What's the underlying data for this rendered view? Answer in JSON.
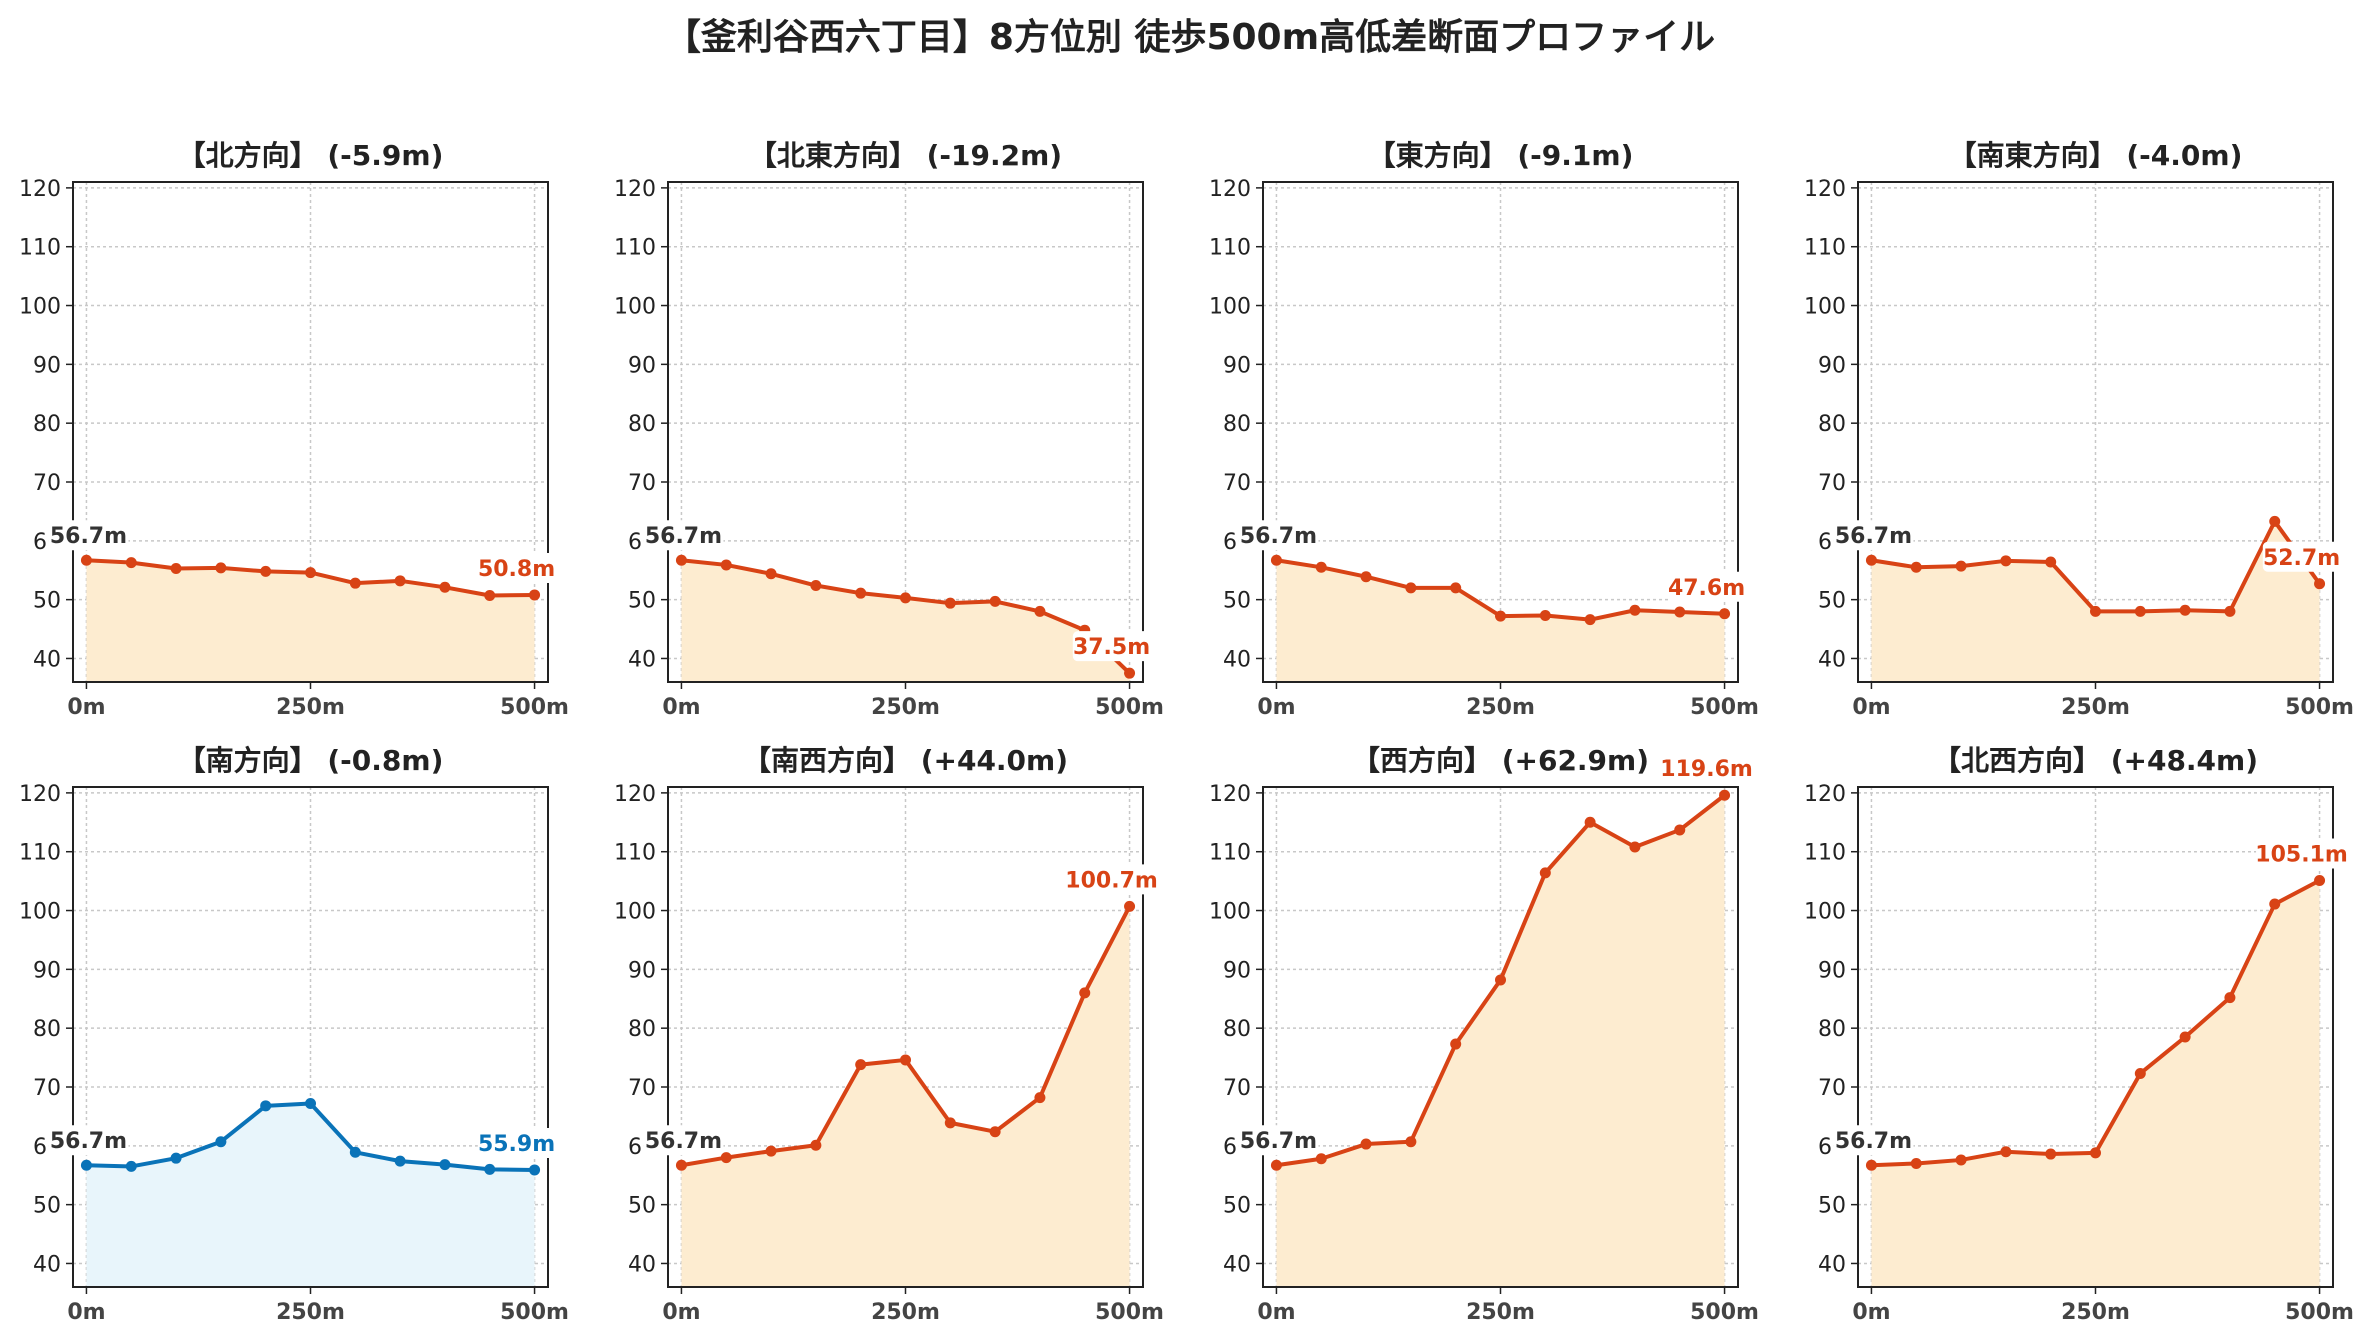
{
  "title": "【釜利谷西六丁目】8方位別 徒歩500m高低差断面プロファイル",
  "colors": {
    "down_line": "#d84315",
    "down_fill": "#fdecd0",
    "flat_line": "#0a73b8",
    "flat_fill": "#e8f5fb",
    "grid": "#c8c8c8",
    "start_label": "#333333"
  },
  "chart_data": [
    {
      "type": "line",
      "title": "【北方向】 (-5.9m)",
      "color_key": "down",
      "x": [
        0,
        50,
        100,
        150,
        200,
        250,
        300,
        350,
        400,
        450,
        500
      ],
      "y": [
        56.7,
        56.3,
        55.3,
        55.4,
        54.8,
        54.6,
        52.8,
        53.2,
        52.1,
        50.7,
        50.8
      ],
      "start_label": "56.7m",
      "end_label": "50.8m",
      "ylim": [
        36,
        121
      ],
      "yticks": [
        40,
        50,
        60,
        70,
        80,
        90,
        100,
        110,
        120
      ],
      "xticks": [
        "0m",
        "250m",
        "500m"
      ]
    },
    {
      "type": "line",
      "title": "【北東方向】 (-19.2m)",
      "color_key": "down",
      "x": [
        0,
        50,
        100,
        150,
        200,
        250,
        300,
        350,
        400,
        450,
        500
      ],
      "y": [
        56.7,
        55.9,
        54.4,
        52.4,
        51.1,
        50.3,
        49.4,
        49.7,
        48.0,
        44.8,
        37.5
      ],
      "start_label": "56.7m",
      "end_label": "37.5m",
      "ylim": [
        36,
        121
      ],
      "yticks": [
        40,
        50,
        60,
        70,
        80,
        90,
        100,
        110,
        120
      ],
      "xticks": [
        "0m",
        "250m",
        "500m"
      ]
    },
    {
      "type": "line",
      "title": "【東方向】 (-9.1m)",
      "color_key": "down",
      "x": [
        0,
        50,
        100,
        150,
        200,
        250,
        300,
        350,
        400,
        450,
        500
      ],
      "y": [
        56.7,
        55.5,
        53.9,
        52.0,
        52.0,
        47.2,
        47.3,
        46.6,
        48.2,
        47.9,
        47.6
      ],
      "start_label": "56.7m",
      "end_label": "47.6m",
      "ylim": [
        36,
        121
      ],
      "yticks": [
        40,
        50,
        60,
        70,
        80,
        90,
        100,
        110,
        120
      ],
      "xticks": [
        "0m",
        "250m",
        "500m"
      ]
    },
    {
      "type": "line",
      "title": "【南東方向】 (-4.0m)",
      "color_key": "down",
      "x": [
        0,
        50,
        100,
        150,
        200,
        250,
        300,
        350,
        400,
        450,
        500
      ],
      "y": [
        56.7,
        55.5,
        55.7,
        56.6,
        56.4,
        48.0,
        48.0,
        48.2,
        48.0,
        63.3,
        52.7
      ],
      "start_label": "56.7m",
      "end_label": "52.7m",
      "ylim": [
        36,
        121
      ],
      "yticks": [
        40,
        50,
        60,
        70,
        80,
        90,
        100,
        110,
        120
      ],
      "xticks": [
        "0m",
        "250m",
        "500m"
      ]
    },
    {
      "type": "line",
      "title": "【南方向】 (-0.8m)",
      "color_key": "flat",
      "x": [
        0,
        50,
        100,
        150,
        200,
        250,
        300,
        350,
        400,
        450,
        500
      ],
      "y": [
        56.7,
        56.5,
        57.9,
        60.7,
        66.8,
        67.2,
        58.9,
        57.4,
        56.8,
        56.0,
        55.9
      ],
      "start_label": "56.7m",
      "end_label": "55.9m",
      "ylim": [
        36,
        121
      ],
      "yticks": [
        40,
        50,
        60,
        70,
        80,
        90,
        100,
        110,
        120
      ],
      "xticks": [
        "0m",
        "250m",
        "500m"
      ]
    },
    {
      "type": "line",
      "title": "【南西方向】 (+44.0m)",
      "color_key": "down",
      "x": [
        0,
        50,
        100,
        150,
        200,
        250,
        300,
        350,
        400,
        450,
        500
      ],
      "y": [
        56.7,
        58.0,
        59.1,
        60.1,
        73.8,
        74.6,
        63.9,
        62.4,
        68.2,
        86.0,
        100.7
      ],
      "start_label": "56.7m",
      "end_label": "100.7m",
      "ylim": [
        36,
        121
      ],
      "yticks": [
        40,
        50,
        60,
        70,
        80,
        90,
        100,
        110,
        120
      ],
      "xticks": [
        "0m",
        "250m",
        "500m"
      ]
    },
    {
      "type": "line",
      "title": "【西方向】 (+62.9m)",
      "color_key": "down",
      "x": [
        0,
        50,
        100,
        150,
        200,
        250,
        300,
        350,
        400,
        450,
        500
      ],
      "y": [
        56.7,
        57.8,
        60.3,
        60.7,
        77.3,
        88.2,
        106.4,
        115.0,
        110.8,
        113.7,
        119.6
      ],
      "start_label": "56.7m",
      "end_label": "119.6m",
      "ylim": [
        36,
        121
      ],
      "yticks": [
        40,
        50,
        60,
        70,
        80,
        90,
        100,
        110,
        120
      ],
      "xticks": [
        "0m",
        "250m",
        "500m"
      ]
    },
    {
      "type": "line",
      "title": "【北西方向】 (+48.4m)",
      "color_key": "down",
      "x": [
        0,
        50,
        100,
        150,
        200,
        250,
        300,
        350,
        400,
        450,
        500
      ],
      "y": [
        56.7,
        57.0,
        57.6,
        59.0,
        58.6,
        58.8,
        72.3,
        78.5,
        85.2,
        101.1,
        105.1
      ],
      "start_label": "56.7m",
      "end_label": "105.1m",
      "ylim": [
        36,
        121
      ],
      "yticks": [
        40,
        50,
        60,
        70,
        80,
        90,
        100,
        110,
        120
      ],
      "xticks": [
        "0m",
        "250m",
        "500m"
      ]
    }
  ]
}
